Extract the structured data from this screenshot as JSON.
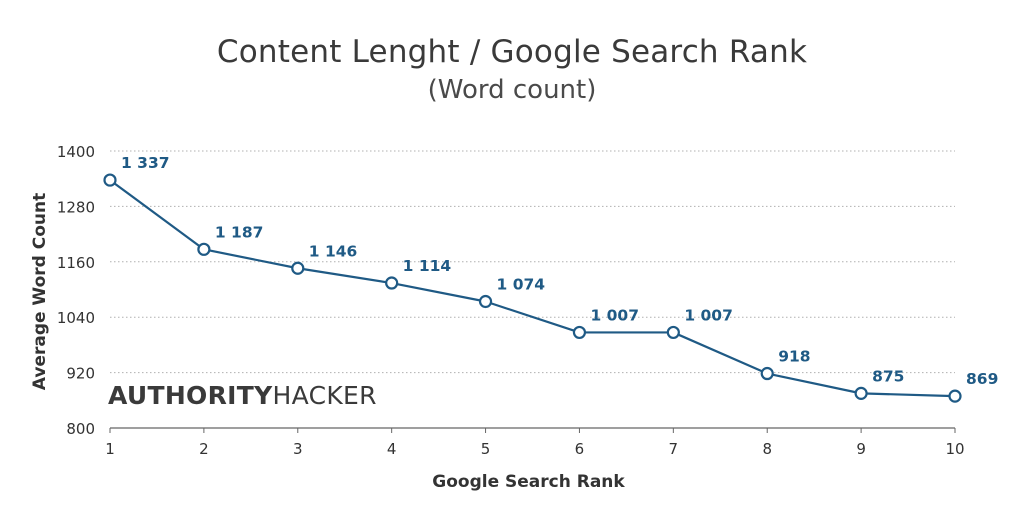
{
  "chart_data": {
    "type": "line",
    "title": "Content Lenght / Google Search Rank",
    "subtitle": "(Word count)",
    "xlabel": "Google Search Rank",
    "ylabel": "Average Word Count",
    "x": [
      1,
      2,
      3,
      4,
      5,
      6,
      7,
      8,
      9,
      10
    ],
    "x_tick_labels": [
      "1",
      "2",
      "3",
      "4",
      "5",
      "6",
      "7",
      "8",
      "9",
      "10"
    ],
    "series": [
      {
        "values": [
          1337,
          1187,
          1146,
          1114,
          1074,
          1007,
          1007,
          918,
          875,
          869
        ],
        "data_labels": [
          "1 337",
          "1 187",
          "1 146",
          "1 114",
          "1 074",
          "1 007",
          "1 007",
          "918",
          "875",
          "869"
        ]
      }
    ],
    "ylim": [
      800,
      1400
    ],
    "y_ticks": [
      800,
      920,
      1040,
      1160,
      1280,
      1400
    ],
    "y_tick_labels": [
      "800",
      "920",
      "1040",
      "1160",
      "1280",
      "1400"
    ],
    "grid": "horizontal dotted",
    "legend": "none",
    "colors": {
      "line": "#1f5a85",
      "marker_fill": "#ffffff",
      "data_label": "#1f5a85",
      "axis_text": "#333333",
      "grid": "#b0b0b0",
      "title": "#3a3a3a"
    }
  },
  "brand": {
    "strong": "AUTHORITY",
    "light": "HACKER"
  }
}
